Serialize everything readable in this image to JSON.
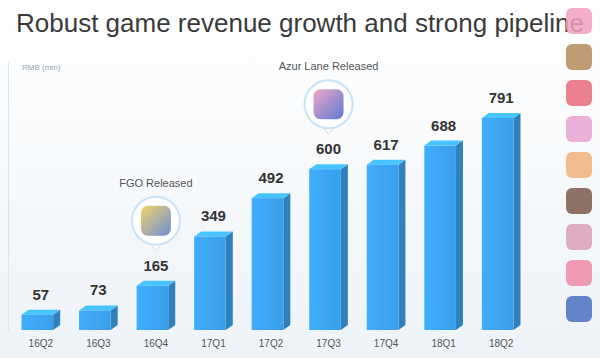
{
  "chart_data": {
    "type": "bar",
    "title": "Robust game revenue growth and strong pipeline",
    "y_label": "RMB (mm)",
    "categories": [
      "16Q2",
      "16Q3",
      "16Q4",
      "17Q1",
      "17Q2",
      "17Q3",
      "17Q4",
      "18Q1",
      "18Q2"
    ],
    "values": [
      57,
      73,
      165,
      349,
      492,
      600,
      617,
      688,
      791
    ],
    "color": "#3a9fe9",
    "ylim": [
      0,
      1000
    ],
    "yticks": [],
    "grid": false,
    "data_labels": true,
    "tick_labels": "x",
    "annotations": [
      {
        "text": "FGO Released",
        "category": "16Q4"
      },
      {
        "text": "Azur Lane Released",
        "category": "17Q3"
      }
    ]
  }
}
